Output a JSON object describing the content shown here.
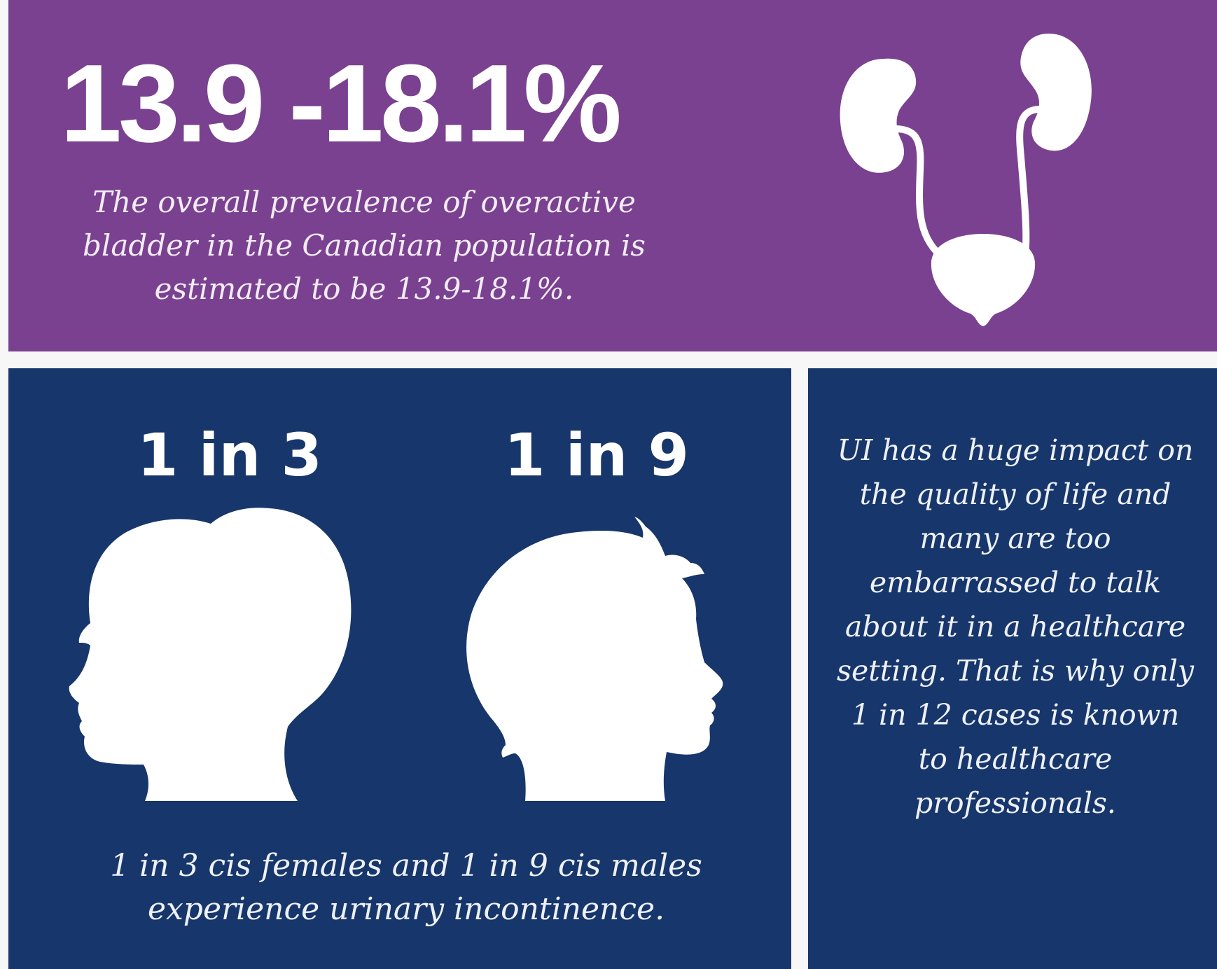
{
  "colors": {
    "background": "#f7f7f8",
    "purple_panel": "#7a4190",
    "navy_panel": "#17366b",
    "foreground": "#ffffff"
  },
  "prevalence": {
    "headline": "13.9 -18.1%",
    "description": "The overall prevalence of overactive bladder in the Canadian population is estimated to be 13.9-18.1%.",
    "icon": "urinary-system-icon"
  },
  "incontinence": {
    "female": {
      "ratio": "1 in 3",
      "icon": "female-head-silhouette-icon"
    },
    "male": {
      "ratio": "1 in 9",
      "icon": "male-head-silhouette-icon"
    },
    "caption": "1 in 3 cis females and 1 in 9 cis males experience urinary incontinence."
  },
  "impact": {
    "text": "UI has a huge impact on the quality of life and many are too embarrassed to talk about it in a healthcare setting. That is why only 1 in 12 cases is known to healthcare professionals."
  }
}
